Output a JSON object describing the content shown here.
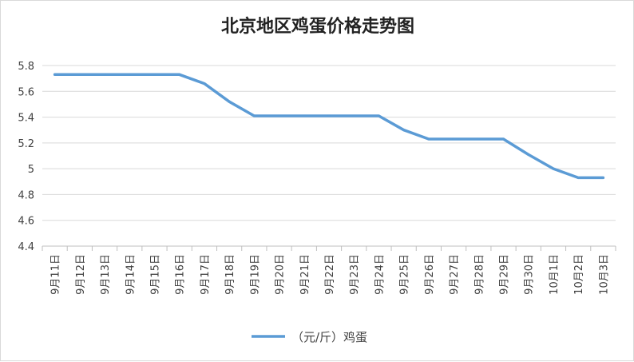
{
  "chart_data": {
    "type": "line",
    "title": "北京地区鸡蛋价格走势图",
    "xlabel": "",
    "ylabel": "",
    "categories": [
      "9月11日",
      "9月12日",
      "9月13日",
      "9月14日",
      "9月15日",
      "9月16日",
      "9月17日",
      "9月18日",
      "9月19日",
      "9月20日",
      "9月21日",
      "9月22日",
      "9月23日",
      "9月24日",
      "9月25日",
      "9月26日",
      "9月27日",
      "9月28日",
      "9月29日",
      "9月30日",
      "10月1日",
      "10月2日",
      "10月3日"
    ],
    "series": [
      {
        "name": "（元/斤）鸡蛋",
        "color": "#5b9bd5",
        "values": [
          5.73,
          5.73,
          5.73,
          5.73,
          5.73,
          5.73,
          5.66,
          5.52,
          5.41,
          5.41,
          5.41,
          5.41,
          5.41,
          5.41,
          5.3,
          5.23,
          5.23,
          5.23,
          5.23,
          5.11,
          5.0,
          4.93,
          4.93
        ]
      }
    ],
    "ylim": [
      4.4,
      5.8
    ],
    "yticks": [
      4.4,
      4.6,
      4.8,
      5,
      5.2,
      5.4,
      5.6,
      5.8
    ],
    "grid": true,
    "legend_position": "bottom"
  }
}
